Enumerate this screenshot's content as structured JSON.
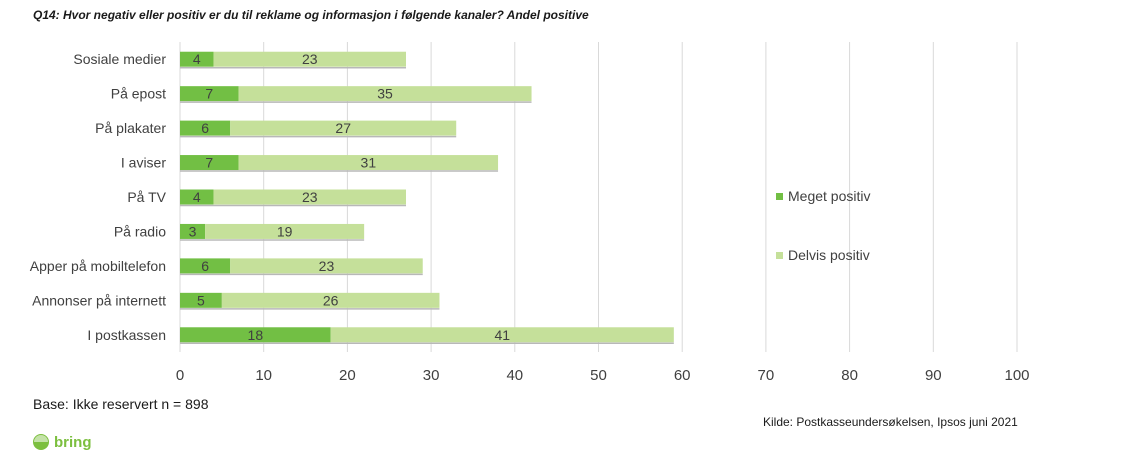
{
  "title": "Q14: Hvor negativ eller positiv er du til reklame og informasjon i følgende kanaler?  Andel positive",
  "base_note": "Base: Ikke reservert n = 898",
  "source_note": "Kilde: Postkasseundersøkelsen, Ipsos juni 2021",
  "logo_text": "bring",
  "colors": {
    "meget_positiv": "#72bf44",
    "delvis_positiv": "#c5e09a",
    "grid": "#d9d9d9",
    "text": "#404040"
  },
  "chart_data": {
    "type": "bar",
    "orientation": "horizontal",
    "stacked": true,
    "categories": [
      "Sosiale medier",
      "På epost",
      "På plakater",
      "I aviser",
      "På TV",
      "På radio",
      "Apper på mobiltelefon",
      "Annonser på internett",
      "I postkassen"
    ],
    "series": [
      {
        "name": "Meget positiv",
        "values": [
          4,
          7,
          6,
          7,
          4,
          3,
          6,
          5,
          18
        ]
      },
      {
        "name": "Delvis positiv",
        "values": [
          23,
          35,
          27,
          31,
          23,
          19,
          23,
          26,
          41
        ]
      }
    ],
    "xlim": [
      0,
      100
    ],
    "xticks": [
      0,
      10,
      20,
      30,
      40,
      50,
      60,
      70,
      80,
      90,
      100
    ],
    "grid": true,
    "legend_position": "right"
  }
}
